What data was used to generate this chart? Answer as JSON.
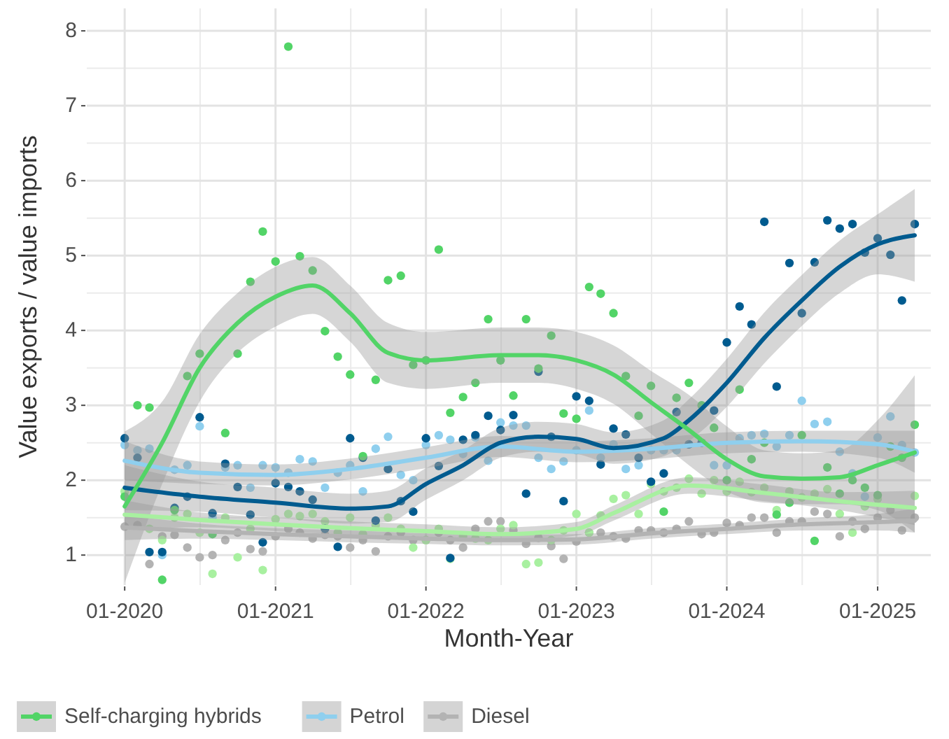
{
  "chart_data": {
    "type": "scatter",
    "xlabel": "Month-Year",
    "ylabel": "Value exports / value imports",
    "x": [
      "2020-01",
      "2020-02",
      "2020-03",
      "2020-04",
      "2020-05",
      "2020-06",
      "2020-07",
      "2020-08",
      "2020-09",
      "2020-10",
      "2020-11",
      "2020-12",
      "2021-01",
      "2021-02",
      "2021-03",
      "2021-04",
      "2021-05",
      "2021-06",
      "2021-07",
      "2021-08",
      "2021-09",
      "2021-10",
      "2021-11",
      "2021-12",
      "2022-01",
      "2022-02",
      "2022-03",
      "2022-04",
      "2022-05",
      "2022-06",
      "2022-07",
      "2022-08",
      "2022-09",
      "2022-10",
      "2022-11",
      "2022-12",
      "2023-01",
      "2023-02",
      "2023-03",
      "2023-04",
      "2023-05",
      "2023-06",
      "2023-07",
      "2023-08",
      "2023-09",
      "2023-10",
      "2023-11",
      "2023-12",
      "2024-01",
      "2024-02",
      "2024-03",
      "2024-04",
      "2024-05",
      "2024-06",
      "2024-07",
      "2024-08",
      "2024-09",
      "2024-10",
      "2024-11",
      "2024-12",
      "2025-01",
      "2025-02",
      "2025-03",
      "2025-04"
    ],
    "xlim": [
      "2019-10-01",
      "2025-05-10"
    ],
    "xticks": [
      {
        "value": "2020-01",
        "label": "01-2020"
      },
      {
        "value": "2021-01",
        "label": "01-2021"
      },
      {
        "value": "2022-01",
        "label": "01-2022"
      },
      {
        "value": "2023-01",
        "label": "01-2023"
      },
      {
        "value": "2024-01",
        "label": "01-2024"
      },
      {
        "value": "2025-01",
        "label": "01-2025"
      }
    ],
    "ylim": [
      0.6,
      8.3
    ],
    "yticks": [
      1,
      2,
      3,
      4,
      5,
      6,
      7,
      8
    ],
    "grid": true,
    "legend": "bottom",
    "series": [
      {
        "marker": "circle",
        "color": "#b3b3b3",
        "values": [
          1.38,
          1.4,
          0.88,
          1.25,
          1.27,
          1.1,
          0.97,
          1.0,
          1.2,
          1.3,
          1.08,
          1.05,
          1.25,
          1.35,
          1.3,
          1.22,
          1.27,
          1.25,
          1.1,
          1.2,
          1.05,
          1.25,
          1.3,
          1.2,
          1.2,
          1.3,
          1.2,
          1.1,
          1.35,
          1.45,
          1.45,
          1.33,
          1.15,
          1.23,
          1.12,
          0.95,
          1.18,
          1.3,
          1.3,
          1.25,
          1.22,
          1.33,
          1.33,
          1.3,
          1.35,
          1.45,
          1.28,
          1.3,
          1.43,
          1.4,
          1.5,
          1.5,
          1.3,
          1.45,
          1.45,
          1.58,
          1.55,
          1.25,
          1.45,
          1.35,
          1.5,
          1.6,
          1.33,
          1.5
        ]
      },
      {
        "marker": "circle",
        "color": "#a8f0a0",
        "values": [
          1.85,
          null,
          1.35,
          1.2,
          1.5,
          1.55,
          1.3,
          0.75,
          1.5,
          0.97,
          1.35,
          0.8,
          1.48,
          1.55,
          1.52,
          1.55,
          1.45,
          1.3,
          1.5,
          1.28,
          1.4,
          1.5,
          1.35,
          1.1,
          1.2,
          1.35,
          0.95,
          1.25,
          1.22,
          1.2,
          1.35,
          1.4,
          0.88,
          0.9,
          1.2,
          1.33,
          1.55,
          1.3,
          1.53,
          1.75,
          1.8,
          1.55,
          1.95,
          1.85,
          1.9,
          2.02,
          1.82,
          2.0,
          1.85,
          1.98,
          1.84,
          1.9,
          1.6,
          1.85,
          1.77,
          1.82,
          1.88,
          1.55,
          1.3,
          1.65,
          1.75,
          null,
          null,
          1.79
        ]
      },
      {
        "marker": "circle",
        "color": "#8fcfee",
        "values": [
          2.47,
          2.4,
          2.42,
          1.0,
          2.14,
          2.2,
          2.72,
          1.5,
          2.17,
          2.2,
          1.9,
          2.2,
          2.17,
          2.1,
          2.28,
          2.25,
          1.9,
          2.1,
          2.2,
          1.85,
          2.42,
          2.58,
          2.07,
          2.0,
          2.47,
          2.6,
          2.54,
          2.35,
          2.57,
          2.26,
          2.77,
          2.73,
          2.73,
          2.3,
          2.15,
          2.25,
          2.4,
          2.93,
          2.3,
          2.48,
          2.15,
          2.2,
          2.4,
          2.4,
          2.4,
          2.48,
          null,
          2.2,
          2.2,
          2.56,
          2.6,
          2.62,
          2.45,
          2.6,
          3.06,
          2.75,
          2.78,
          2.38,
          2.09,
          1.78,
          2.57,
          2.85,
          2.47,
          2.37
        ]
      },
      {
        "marker": "circle",
        "color": "#005b8f",
        "values": [
          2.56,
          2.3,
          1.04,
          1.04,
          1.63,
          1.78,
          2.84,
          1.56,
          2.22,
          1.91,
          1.54,
          1.17,
          1.96,
          1.91,
          1.85,
          1.74,
          1.35,
          1.11,
          2.56,
          2.3,
          1.46,
          2.15,
          1.72,
          1.58,
          2.56,
          2.19,
          0.96,
          2.54,
          2.6,
          2.86,
          2.67,
          2.87,
          1.82,
          3.45,
          2.58,
          1.72,
          3.12,
          3.06,
          2.21,
          2.69,
          2.61,
          2.3,
          1.98,
          2.09,
          2.91,
          2.48,
          2.5,
          2.93,
          3.84,
          4.32,
          4.08,
          5.45,
          3.25,
          4.9,
          4.23,
          4.91,
          5.47,
          5.36,
          5.42,
          5.04,
          5.23,
          5.01,
          4.4,
          5.42
        ]
      },
      {
        "marker": "circle",
        "color": "#52d467",
        "values": [
          1.78,
          3.0,
          2.97,
          0.67,
          1.6,
          3.39,
          3.69,
          1.28,
          2.63,
          3.69,
          4.65,
          5.32,
          4.92,
          7.79,
          4.99,
          4.8,
          3.99,
          3.65,
          3.41,
          2.32,
          3.34,
          4.67,
          4.73,
          3.54,
          3.6,
          5.08,
          2.9,
          3.11,
          3.3,
          4.15,
          3.6,
          3.13,
          4.15,
          3.49,
          3.93,
          2.89,
          2.82,
          4.58,
          4.49,
          4.23,
          3.39,
          2.86,
          3.26,
          1.58,
          3.1,
          3.3,
          3.0,
          2.7,
          2.0,
          3.21,
          2.28,
          2.5,
          1.54,
          1.7,
          2.6,
          1.19,
          2.17,
          1.82,
          2.0,
          1.9,
          1.8,
          2.45,
          2.3,
          2.74
        ]
      },
      {
        "type": "line",
        "marker": "none",
        "color": "#b3b3b3",
        "name": "Diesel",
        "x": [
          "2020-01",
          "2020-07",
          "2021-01",
          "2021-07",
          "2022-01",
          "2022-07",
          "2023-01",
          "2023-07",
          "2024-01",
          "2024-07",
          "2025-01",
          "2025-04"
        ],
        "values": [
          1.37,
          1.32,
          1.28,
          1.25,
          1.22,
          1.2,
          1.21,
          1.29,
          1.35,
          1.41,
          1.44,
          1.46
        ],
        "lower": [
          1.2,
          1.22,
          1.2,
          1.17,
          1.15,
          1.13,
          1.14,
          1.22,
          1.28,
          1.33,
          1.33,
          1.3
        ],
        "upper": [
          1.54,
          1.42,
          1.36,
          1.33,
          1.29,
          1.27,
          1.28,
          1.36,
          1.42,
          1.49,
          1.55,
          1.62
        ]
      },
      {
        "type": "line",
        "marker": "none",
        "color": "#a8f0a0",
        "x": [
          "2020-01",
          "2020-07",
          "2021-01",
          "2021-07",
          "2022-01",
          "2022-07",
          "2023-01",
          "2023-04",
          "2023-10",
          "2024-04",
          "2024-10",
          "2025-04"
        ],
        "values": [
          1.54,
          1.47,
          1.41,
          1.36,
          1.32,
          1.28,
          1.35,
          1.56,
          1.93,
          1.83,
          1.72,
          1.63
        ],
        "lower": [
          1.35,
          1.37,
          1.32,
          1.27,
          1.23,
          1.19,
          1.26,
          1.46,
          1.82,
          1.72,
          1.6,
          1.4
        ],
        "upper": [
          1.73,
          1.57,
          1.5,
          1.45,
          1.41,
          1.37,
          1.44,
          1.66,
          2.04,
          1.94,
          1.84,
          1.86
        ]
      },
      {
        "type": "line",
        "marker": "none",
        "color": "#8fcfee",
        "name": "Petrol",
        "x": [
          "2020-01",
          "2020-07",
          "2021-01",
          "2021-07",
          "2022-01",
          "2022-07",
          "2023-01",
          "2023-07",
          "2024-01",
          "2024-07",
          "2025-01",
          "2025-04"
        ],
        "values": [
          2.26,
          2.1,
          2.07,
          2.15,
          2.3,
          2.45,
          2.38,
          2.42,
          2.5,
          2.52,
          2.48,
          2.38
        ],
        "lower": [
          2.0,
          1.95,
          1.93,
          2.01,
          2.16,
          2.31,
          2.24,
          2.28,
          2.36,
          2.38,
          2.3,
          2.1
        ],
        "upper": [
          2.52,
          2.25,
          2.21,
          2.29,
          2.44,
          2.59,
          2.52,
          2.56,
          2.64,
          2.66,
          2.66,
          2.66
        ]
      },
      {
        "type": "line",
        "marker": "none",
        "color": "#005b8f",
        "x": [
          "2020-01",
          "2020-07",
          "2021-01",
          "2021-07",
          "2021-10",
          "2022-01",
          "2022-04",
          "2022-07",
          "2022-10",
          "2023-01",
          "2023-04",
          "2023-08",
          "2023-10",
          "2024-01",
          "2024-04",
          "2024-07",
          "2024-10",
          "2025-01",
          "2025-04"
        ],
        "values": [
          1.9,
          1.78,
          1.7,
          1.62,
          1.65,
          1.95,
          2.2,
          2.5,
          2.58,
          2.55,
          2.43,
          2.56,
          2.8,
          3.3,
          3.9,
          4.4,
          4.85,
          5.15,
          5.27
        ],
        "lower": [
          1.6,
          1.58,
          1.5,
          1.42,
          1.44,
          1.74,
          2.0,
          2.3,
          2.38,
          2.35,
          2.22,
          2.32,
          2.52,
          2.98,
          3.56,
          4.06,
          4.5,
          4.75,
          4.65
        ],
        "upper": [
          2.2,
          1.98,
          1.9,
          1.82,
          1.86,
          2.16,
          2.4,
          2.7,
          2.78,
          2.75,
          2.64,
          2.8,
          3.08,
          3.62,
          4.24,
          4.74,
          5.2,
          5.55,
          5.89
        ]
      },
      {
        "type": "line",
        "marker": "none",
        "color": "#52d467",
        "name": "Self-charging hybrids",
        "x": [
          "2020-01",
          "2020-04",
          "2020-07",
          "2020-10",
          "2021-01",
          "2021-04",
          "2021-07",
          "2021-10",
          "2022-01",
          "2022-07",
          "2022-10",
          "2023-01",
          "2023-04",
          "2023-07",
          "2023-10",
          "2024-01",
          "2024-04",
          "2024-07",
          "2024-10",
          "2025-01",
          "2025-04"
        ],
        "values": [
          1.65,
          2.5,
          3.5,
          4.1,
          4.45,
          4.6,
          4.23,
          3.7,
          3.6,
          3.67,
          3.67,
          3.6,
          3.41,
          3.04,
          2.67,
          2.28,
          2.05,
          2.02,
          2.04,
          2.2,
          2.37
        ],
        "lower": [
          0.63,
          1.95,
          3.05,
          3.7,
          4.05,
          4.22,
          3.85,
          3.3,
          3.22,
          3.3,
          3.3,
          3.22,
          3.02,
          2.62,
          2.2,
          1.85,
          1.7,
          1.68,
          1.68,
          1.6,
          1.3
        ],
        "upper": [
          2.65,
          3.05,
          3.95,
          4.5,
          4.85,
          4.98,
          4.6,
          4.1,
          3.98,
          4.04,
          4.04,
          3.98,
          3.8,
          3.46,
          3.14,
          2.72,
          2.4,
          2.36,
          2.4,
          2.8,
          3.4
        ]
      }
    ]
  }
}
